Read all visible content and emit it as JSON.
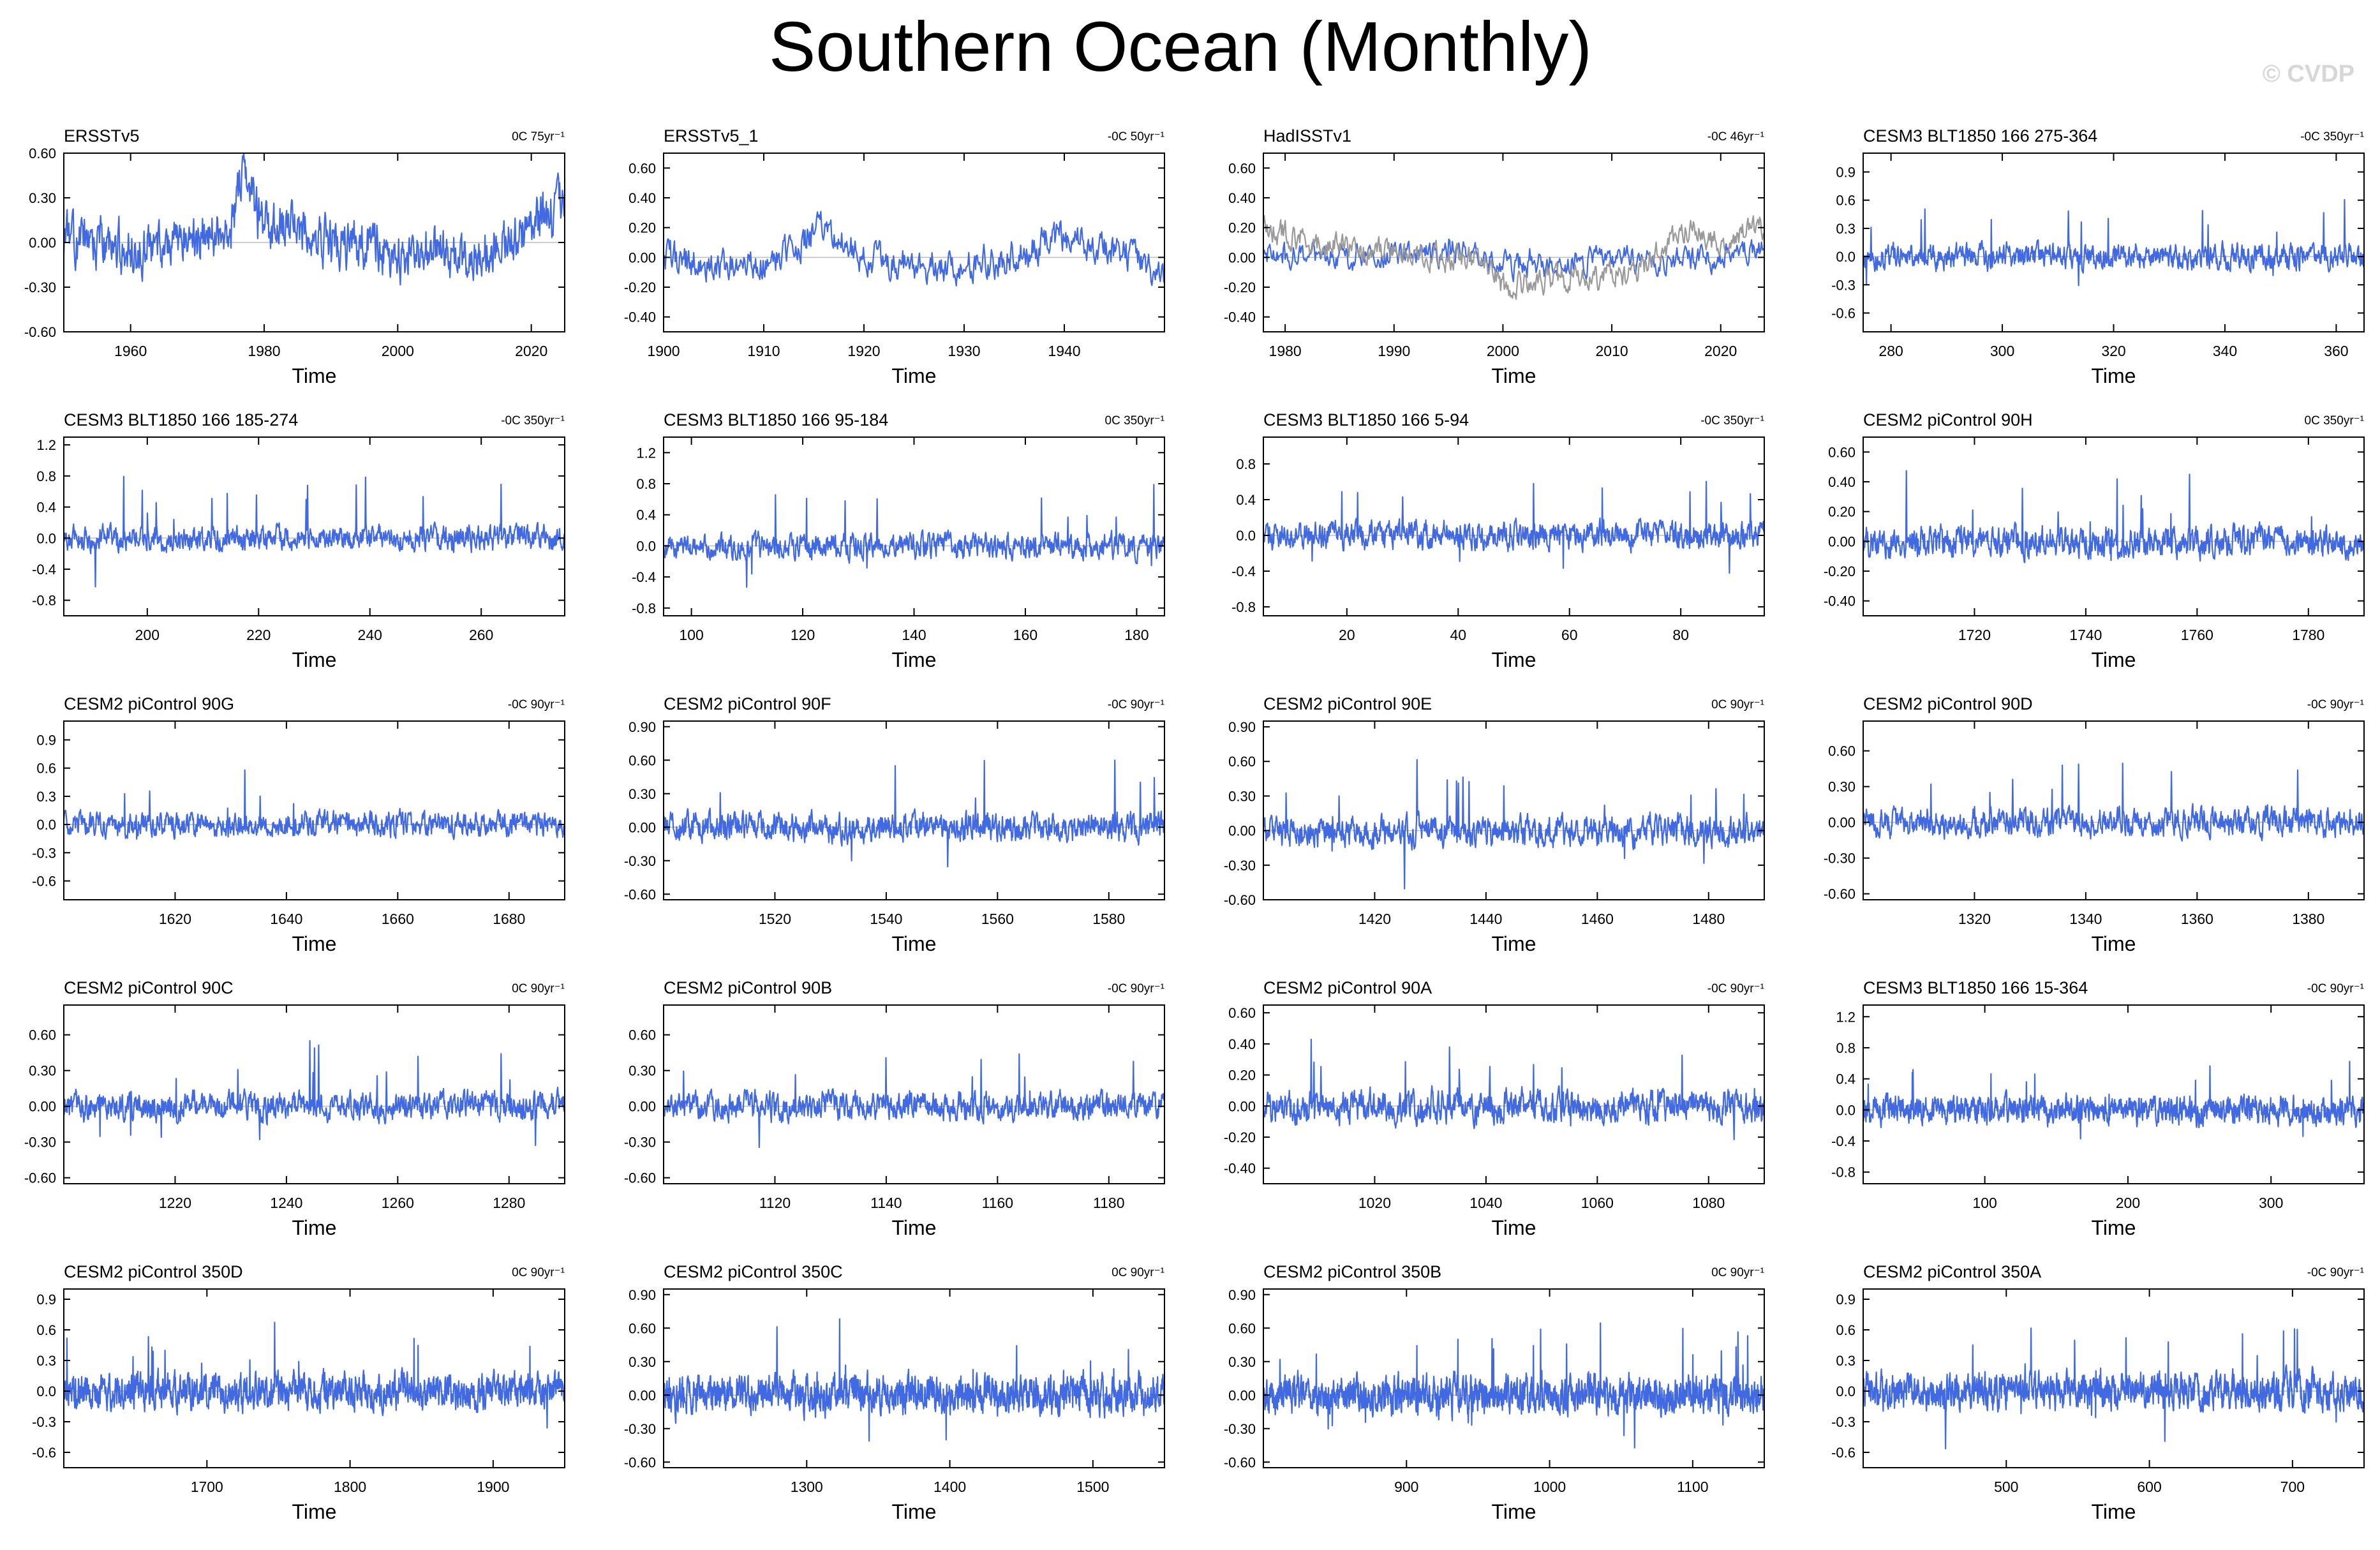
{
  "page": {
    "title": "Southern Ocean (Monthly)",
    "watermark": "© CVDP",
    "xlabel": "Time",
    "line_color": "#4169e1",
    "obs_gray_color": "#9a9a9a"
  },
  "chart_data": [
    {
      "type": "line",
      "title": "ERSSTv5",
      "trend": "0C 75yr⁻¹",
      "xlabel": "Time",
      "xlim": [
        1950,
        2025
      ],
      "xticks": [
        1960,
        1980,
        2000,
        2020
      ],
      "ylim": [
        -0.6,
        0.6
      ],
      "yticks": [
        -0.6,
        -0.3,
        0.0,
        0.3,
        0.6
      ],
      "yformat": 2,
      "n": 900,
      "amp": 0.13,
      "spike": 0.05,
      "seed": 11,
      "series": [
        {
          "x": [
            1950,
            1955,
            1960,
            1965,
            1970,
            1975,
            1977,
            1980,
            1985,
            1990,
            1995,
            2000,
            2005,
            2010,
            2015,
            2018,
            2020,
            2024
          ],
          "values": [
            0.0,
            0.0,
            -0.05,
            0.0,
            0.02,
            0.1,
            0.45,
            0.1,
            0.1,
            0.0,
            0.0,
            -0.1,
            -0.05,
            -0.15,
            0.0,
            0.05,
            0.1,
            0.25
          ]
        }
      ]
    },
    {
      "type": "line",
      "title": "ERSSTv5_1",
      "trend": "-0C 50yr⁻¹",
      "xlabel": "Time",
      "xlim": [
        1900,
        1950
      ],
      "xticks": [
        1900,
        1910,
        1920,
        1930,
        1940
      ],
      "ylim": [
        -0.5,
        0.7
      ],
      "yticks": [
        -0.4,
        -0.2,
        0.0,
        0.2,
        0.4,
        0.6
      ],
      "yformat": 2,
      "n": 600,
      "amp": 0.09,
      "spike": 0.03,
      "seed": 12,
      "series": [
        {
          "x": [
            1900,
            1905,
            1910,
            1913,
            1916,
            1920,
            1925,
            1930,
            1935,
            1940,
            1945,
            1950
          ],
          "values": [
            0.0,
            -0.05,
            -0.05,
            0.05,
            0.2,
            0.0,
            -0.05,
            -0.05,
            0.0,
            0.15,
            0.05,
            -0.1
          ]
        }
      ]
    },
    {
      "type": "line",
      "title": "HadISSTv1",
      "trend": "-0C 46yr⁻¹",
      "xlabel": "Time",
      "xlim": [
        1978,
        2024
      ],
      "xticks": [
        1980,
        1990,
        2000,
        2010,
        2020
      ],
      "ylim": [
        -0.5,
        0.7
      ],
      "yticks": [
        -0.4,
        -0.2,
        0.0,
        0.2,
        0.4,
        0.6
      ],
      "yformat": 2,
      "n": 552,
      "amp": 0.07,
      "spike": 0.03,
      "seed": 13,
      "series": [
        {
          "x": [
            1978,
            1985,
            1990,
            1995,
            2000,
            2005,
            2010,
            2015,
            2020,
            2024
          ],
          "values": [
            0.05,
            0.0,
            0.0,
            0.05,
            -0.05,
            -0.05,
            0.0,
            -0.02,
            0.0,
            0.08
          ]
        },
        {
          "x": [
            1978,
            1983,
            1988,
            1993,
            1998,
            2000,
            2005,
            2008,
            2012,
            2017,
            2019,
            2024
          ],
          "values": [
            0.2,
            0.1,
            0.05,
            0.0,
            0.0,
            -0.2,
            -0.15,
            -0.15,
            -0.1,
            0.2,
            0.1,
            0.2
          ],
          "color": "gray"
        }
      ]
    },
    {
      "type": "line",
      "title": "CESM3 BLT1850 166 275-364",
      "trend": "-0C 350yr⁻¹",
      "xlabel": "Time",
      "xlim": [
        275,
        365
      ],
      "xticks": [
        280,
        300,
        320,
        340,
        360
      ],
      "ylim": [
        -0.8,
        1.1
      ],
      "yticks": [
        -0.6,
        -0.3,
        0.0,
        0.3,
        0.6,
        0.9
      ],
      "yformat": 1,
      "n": 1080,
      "amp": 0.1,
      "spike": 0.45,
      "seed": 14,
      "series": [
        {
          "x": [
            275,
            365
          ],
          "values": [
            0,
            0
          ]
        }
      ]
    },
    {
      "type": "line",
      "title": "CESM3 BLT1850 166 185-274",
      "trend": "-0C 350yr⁻¹",
      "xlabel": "Time",
      "xlim": [
        185,
        275
      ],
      "xticks": [
        200,
        220,
        240,
        260
      ],
      "ylim": [
        -1.0,
        1.3
      ],
      "yticks": [
        -0.8,
        -0.4,
        0.0,
        0.4,
        0.8,
        1.2
      ],
      "yformat": 1,
      "n": 1080,
      "amp": 0.12,
      "spike": 0.5,
      "seed": 15,
      "series": [
        {
          "x": [
            185,
            275
          ],
          "values": [
            0,
            0
          ]
        }
      ]
    },
    {
      "type": "line",
      "title": "CESM3 BLT1850 166 95-184",
      "trend": "0C 350yr⁻¹",
      "xlabel": "Time",
      "xlim": [
        95,
        185
      ],
      "xticks": [
        100,
        120,
        140,
        160,
        180
      ],
      "ylim": [
        -0.9,
        1.4
      ],
      "yticks": [
        -0.8,
        -0.4,
        0.0,
        0.4,
        0.8,
        1.2
      ],
      "yformat": 1,
      "n": 1080,
      "amp": 0.12,
      "spike": 0.5,
      "seed": 16,
      "series": [
        {
          "x": [
            95,
            185
          ],
          "values": [
            0,
            0
          ]
        }
      ]
    },
    {
      "type": "line",
      "title": "CESM3 BLT1850 166 5-94",
      "trend": "-0C 350yr⁻¹",
      "xlabel": "Time",
      "xlim": [
        5,
        95
      ],
      "xticks": [
        20,
        40,
        60,
        80
      ],
      "ylim": [
        -0.9,
        1.1
      ],
      "yticks": [
        -0.8,
        -0.4,
        0.0,
        0.4,
        0.8
      ],
      "yformat": 1,
      "n": 1080,
      "amp": 0.12,
      "spike": 0.45,
      "seed": 17,
      "series": [
        {
          "x": [
            5,
            95
          ],
          "values": [
            0,
            0
          ]
        }
      ]
    },
    {
      "type": "line",
      "title": "CESM2 piControl 90H",
      "trend": "0C 350yr⁻¹",
      "xlabel": "Time",
      "xlim": [
        1700,
        1790
      ],
      "xticks": [
        1720,
        1740,
        1760,
        1780
      ],
      "ylim": [
        -0.5,
        0.7
      ],
      "yticks": [
        -0.4,
        -0.2,
        0.0,
        0.2,
        0.4,
        0.6
      ],
      "yformat": 2,
      "n": 1080,
      "amp": 0.08,
      "spike": 0.3,
      "seed": 18,
      "series": [
        {
          "x": [
            1700,
            1790
          ],
          "values": [
            0,
            0
          ]
        }
      ]
    },
    {
      "type": "line",
      "title": "CESM2 piControl 90G",
      "trend": "-0C 90yr⁻¹",
      "xlabel": "Time",
      "xlim": [
        1600,
        1690
      ],
      "xticks": [
        1620,
        1640,
        1660,
        1680
      ],
      "ylim": [
        -0.8,
        1.1
      ],
      "yticks": [
        -0.6,
        -0.3,
        0.0,
        0.3,
        0.6,
        0.9
      ],
      "yformat": 1,
      "n": 1080,
      "amp": 0.1,
      "spike": 0.4,
      "seed": 19,
      "series": [
        {
          "x": [
            1600,
            1690
          ],
          "values": [
            0,
            0
          ]
        }
      ]
    },
    {
      "type": "line",
      "title": "CESM2 piControl 90F",
      "trend": "-0C 90yr⁻¹",
      "xlabel": "Time",
      "xlim": [
        1500,
        1590
      ],
      "xticks": [
        1520,
        1540,
        1560,
        1580
      ],
      "ylim": [
        -0.65,
        0.95
      ],
      "yticks": [
        -0.6,
        -0.3,
        0.0,
        0.3,
        0.6,
        0.9
      ],
      "yformat": 2,
      "n": 1080,
      "amp": 0.1,
      "spike": 0.4,
      "seed": 20,
      "series": [
        {
          "x": [
            1500,
            1590
          ],
          "values": [
            0,
            0
          ]
        }
      ]
    },
    {
      "type": "line",
      "title": "CESM2 piControl 90E",
      "trend": "0C 90yr⁻¹",
      "xlabel": "Time",
      "xlim": [
        1400,
        1490
      ],
      "xticks": [
        1420,
        1440,
        1460,
        1480
      ],
      "ylim": [
        -0.6,
        0.95
      ],
      "yticks": [
        -0.6,
        -0.3,
        0.0,
        0.3,
        0.6,
        0.9
      ],
      "yformat": 2,
      "n": 1080,
      "amp": 0.1,
      "spike": 0.4,
      "seed": 21,
      "series": [
        {
          "x": [
            1400,
            1490
          ],
          "values": [
            0,
            0
          ]
        }
      ]
    },
    {
      "type": "line",
      "title": "CESM2 piControl 90D",
      "trend": "-0C 90yr⁻¹",
      "xlabel": "Time",
      "xlim": [
        1300,
        1390
      ],
      "xticks": [
        1320,
        1340,
        1360,
        1380
      ],
      "ylim": [
        -0.65,
        0.85
      ],
      "yticks": [
        -0.6,
        -0.3,
        0.0,
        0.3,
        0.6
      ],
      "yformat": 2,
      "n": 1080,
      "amp": 0.09,
      "spike": 0.35,
      "seed": 22,
      "series": [
        {
          "x": [
            1300,
            1390
          ],
          "values": [
            0,
            0
          ]
        }
      ]
    },
    {
      "type": "line",
      "title": "CESM2 piControl 90C",
      "trend": "0C 90yr⁻¹",
      "xlabel": "Time",
      "xlim": [
        1200,
        1290
      ],
      "xticks": [
        1220,
        1240,
        1260,
        1280
      ],
      "ylim": [
        -0.65,
        0.85
      ],
      "yticks": [
        -0.6,
        -0.3,
        0.0,
        0.3,
        0.6
      ],
      "yformat": 2,
      "n": 1080,
      "amp": 0.09,
      "spike": 0.35,
      "seed": 23,
      "series": [
        {
          "x": [
            1200,
            1290
          ],
          "values": [
            0,
            0
          ]
        }
      ]
    },
    {
      "type": "line",
      "title": "CESM2 piControl 90B",
      "trend": "-0C 90yr⁻¹",
      "xlabel": "Time",
      "xlim": [
        1100,
        1190
      ],
      "xticks": [
        1120,
        1140,
        1160,
        1180
      ],
      "ylim": [
        -0.65,
        0.85
      ],
      "yticks": [
        -0.6,
        -0.3,
        0.0,
        0.3,
        0.6
      ],
      "yformat": 2,
      "n": 1080,
      "amp": 0.09,
      "spike": 0.35,
      "seed": 24,
      "series": [
        {
          "x": [
            1100,
            1190
          ],
          "values": [
            0,
            0
          ]
        }
      ]
    },
    {
      "type": "line",
      "title": "CESM2 piControl 90A",
      "trend": "-0C 90yr⁻¹",
      "xlabel": "Time",
      "xlim": [
        1000,
        1090
      ],
      "xticks": [
        1020,
        1040,
        1060,
        1080
      ],
      "ylim": [
        -0.5,
        0.65
      ],
      "yticks": [
        -0.4,
        -0.2,
        0.0,
        0.2,
        0.4,
        0.6
      ],
      "yformat": 2,
      "n": 1080,
      "amp": 0.08,
      "spike": 0.3,
      "seed": 25,
      "series": [
        {
          "x": [
            1000,
            1090
          ],
          "values": [
            0,
            0
          ]
        }
      ]
    },
    {
      "type": "line",
      "title": "CESM3 BLT1850 166 15-364",
      "trend": "-0C 90yr⁻¹",
      "xlabel": "Time",
      "xlim": [
        15,
        365
      ],
      "xticks": [
        100,
        200,
        300
      ],
      "ylim": [
        -0.95,
        1.35
      ],
      "yticks": [
        -0.8,
        -0.4,
        0.0,
        0.4,
        0.8,
        1.2
      ],
      "yformat": 1,
      "n": 1600,
      "amp": 0.13,
      "spike": 0.5,
      "seed": 26,
      "series": [
        {
          "x": [
            15,
            365
          ],
          "values": [
            0,
            0
          ]
        }
      ]
    },
    {
      "type": "line",
      "title": "CESM2 piControl 350D",
      "trend": "0C 90yr⁻¹",
      "xlabel": "Time",
      "xlim": [
        1600,
        1950
      ],
      "xticks": [
        1700,
        1800,
        1900
      ],
      "ylim": [
        -0.75,
        1.0
      ],
      "yticks": [
        -0.6,
        -0.3,
        0.0,
        0.3,
        0.6,
        0.9
      ],
      "yformat": 1,
      "n": 1600,
      "amp": 0.13,
      "spike": 0.4,
      "seed": 27,
      "series": [
        {
          "x": [
            1600,
            1950
          ],
          "values": [
            0,
            0
          ]
        }
      ]
    },
    {
      "type": "line",
      "title": "CESM2 piControl 350C",
      "trend": "0C 90yr⁻¹",
      "xlabel": "Time",
      "xlim": [
        1200,
        1550
      ],
      "xticks": [
        1300,
        1400,
        1500
      ],
      "ylim": [
        -0.65,
        0.95
      ],
      "yticks": [
        -0.6,
        -0.3,
        0.0,
        0.3,
        0.6,
        0.9
      ],
      "yformat": 2,
      "n": 1600,
      "amp": 0.13,
      "spike": 0.4,
      "seed": 28,
      "series": [
        {
          "x": [
            1200,
            1550
          ],
          "values": [
            0,
            0
          ]
        }
      ]
    },
    {
      "type": "line",
      "title": "CESM2 piControl 350B",
      "trend": "0C 90yr⁻¹",
      "xlabel": "Time",
      "xlim": [
        800,
        1150
      ],
      "xticks": [
        900,
        1000,
        1100
      ],
      "ylim": [
        -0.65,
        0.95
      ],
      "yticks": [
        -0.6,
        -0.3,
        0.0,
        0.3,
        0.6,
        0.9
      ],
      "yformat": 2,
      "n": 1600,
      "amp": 0.13,
      "spike": 0.4,
      "seed": 29,
      "series": [
        {
          "x": [
            800,
            1150
          ],
          "values": [
            0,
            0
          ]
        }
      ]
    },
    {
      "type": "line",
      "title": "CESM2 piControl 350A",
      "trend": "-0C 90yr⁻¹",
      "xlabel": "Time",
      "xlim": [
        400,
        750
      ],
      "xticks": [
        500,
        600,
        700
      ],
      "ylim": [
        -0.75,
        1.0
      ],
      "yticks": [
        -0.6,
        -0.3,
        0.0,
        0.3,
        0.6,
        0.9
      ],
      "yformat": 1,
      "n": 1600,
      "amp": 0.13,
      "spike": 0.4,
      "seed": 30,
      "series": [
        {
          "x": [
            400,
            750
          ],
          "values": [
            0,
            0
          ]
        }
      ]
    }
  ]
}
